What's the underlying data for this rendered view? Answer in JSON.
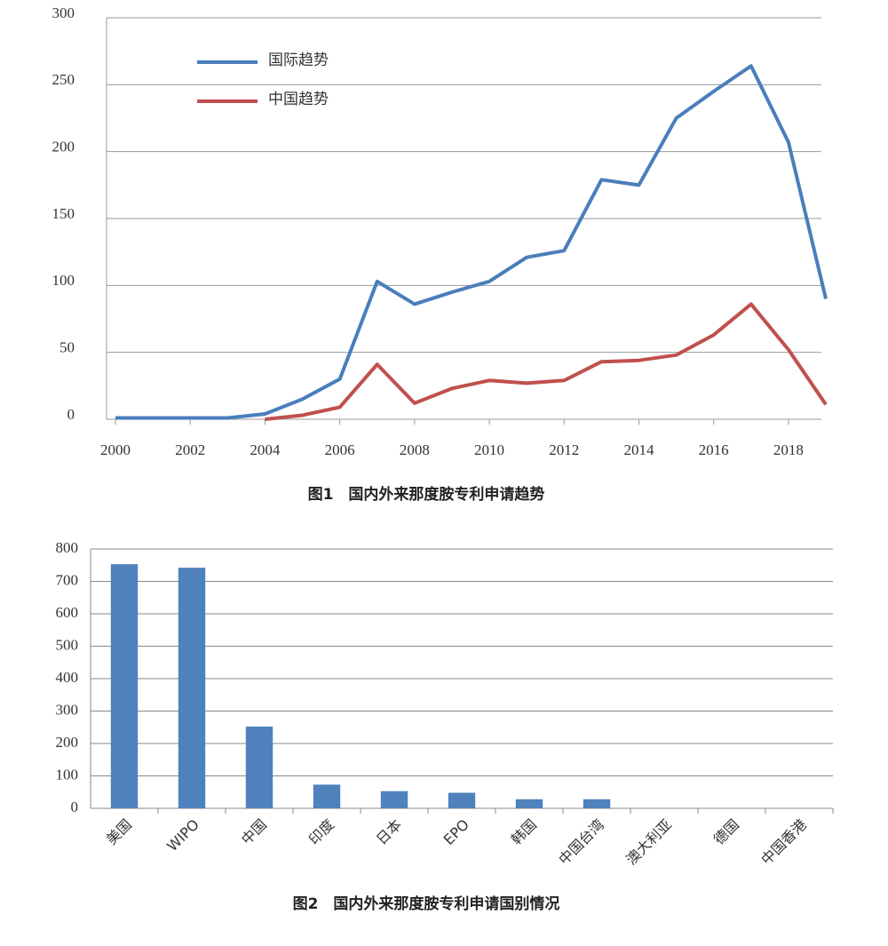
{
  "chart_data": [
    {
      "type": "line",
      "caption": "图1　国内外来那度胺专利申请趋势",
      "x": [
        2000,
        2001,
        2002,
        2003,
        2004,
        2005,
        2006,
        2007,
        2008,
        2009,
        2010,
        2011,
        2012,
        2013,
        2014,
        2015,
        2016,
        2017,
        2018,
        2019
      ],
      "series": [
        {
          "name": "国际趋势",
          "color": "#4a7ebb",
          "values": [
            1,
            1,
            1,
            1,
            4,
            15,
            30,
            103,
            86,
            95,
            103,
            121,
            126,
            179,
            175,
            225,
            245,
            264,
            207,
            90
          ]
        },
        {
          "name": "中国趋势",
          "color": "#c0504d",
          "values": [
            null,
            null,
            null,
            null,
            0,
            3,
            9,
            41,
            12,
            23,
            29,
            27,
            29,
            43,
            44,
            48,
            63,
            86,
            52,
            11
          ]
        }
      ],
      "xlim": [
        2000,
        2019
      ],
      "xticks": [
        2000,
        2002,
        2004,
        2006,
        2008,
        2010,
        2012,
        2014,
        2016,
        2018
      ],
      "ylim": [
        0,
        300
      ],
      "yticks": [
        0,
        50,
        100,
        150,
        200,
        250,
        300
      ],
      "grid": true,
      "legend": "upper left"
    },
    {
      "type": "bar",
      "caption": "图2　国内外来那度胺专利申请国别情况",
      "categories": [
        "美国",
        "WIPO",
        "中国",
        "印度",
        "日本",
        "EPO",
        "韩国",
        "中国台湾",
        "澳大利亚",
        "德国",
        "中国香港"
      ],
      "values": [
        753,
        742,
        252,
        73,
        53,
        48,
        28,
        28,
        0,
        0,
        0
      ],
      "color": "#4f81bd",
      "ylim": [
        0,
        800
      ],
      "yticks": [
        0,
        100,
        200,
        300,
        400,
        500,
        600,
        700,
        800
      ],
      "grid": true
    }
  ]
}
